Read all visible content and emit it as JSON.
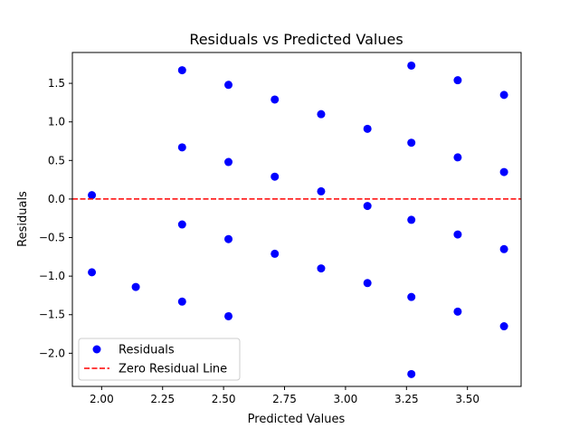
{
  "chart_data": {
    "type": "scatter",
    "title": "Residuals vs Predicted Values",
    "xlabel": "Predicted Values",
    "ylabel": "Residuals",
    "xlim": [
      1.88,
      3.72
    ],
    "ylim": [
      -2.43,
      1.9
    ],
    "xticks": [
      2.0,
      2.25,
      2.5,
      2.75,
      3.0,
      3.25,
      3.5
    ],
    "xtick_labels": [
      "2.00",
      "2.25",
      "2.50",
      "2.75",
      "3.00",
      "3.25",
      "3.50"
    ],
    "yticks": [
      -2.0,
      -1.5,
      -1.0,
      -0.5,
      0.0,
      0.5,
      1.0,
      1.5
    ],
    "ytick_labels": [
      "−2.0",
      "−1.5",
      "−1.0",
      "−0.5",
      "0.0",
      "0.5",
      "1.0",
      "1.5"
    ],
    "grid": false,
    "legend_position": "lower-left",
    "series": [
      {
        "name": "Residuals",
        "kind": "points",
        "color": "#0000ff",
        "x": [
          1.96,
          1.96,
          2.14,
          2.33,
          2.33,
          2.33,
          2.33,
          2.52,
          2.52,
          2.52,
          2.52,
          2.71,
          2.71,
          2.71,
          2.9,
          2.9,
          2.9,
          3.09,
          3.09,
          3.09,
          3.27,
          3.27,
          3.27,
          3.27,
          3.27,
          3.46,
          3.46,
          3.46,
          3.46,
          3.65,
          3.65,
          3.65,
          3.65
        ],
        "y": [
          0.05,
          -0.95,
          -1.14,
          1.67,
          0.67,
          -0.33,
          -1.33,
          1.48,
          0.48,
          -0.52,
          -1.52,
          1.29,
          0.29,
          -0.71,
          1.1,
          0.1,
          -0.9,
          0.91,
          -0.09,
          -1.09,
          1.73,
          0.73,
          -0.27,
          -1.27,
          -2.27,
          1.54,
          0.54,
          -0.46,
          -1.46,
          1.35,
          0.35,
          -0.65,
          -1.65
        ]
      },
      {
        "name": "Zero Residual Line",
        "kind": "hline",
        "y": 0,
        "color": "#ff0000",
        "style": "dashed"
      }
    ]
  }
}
